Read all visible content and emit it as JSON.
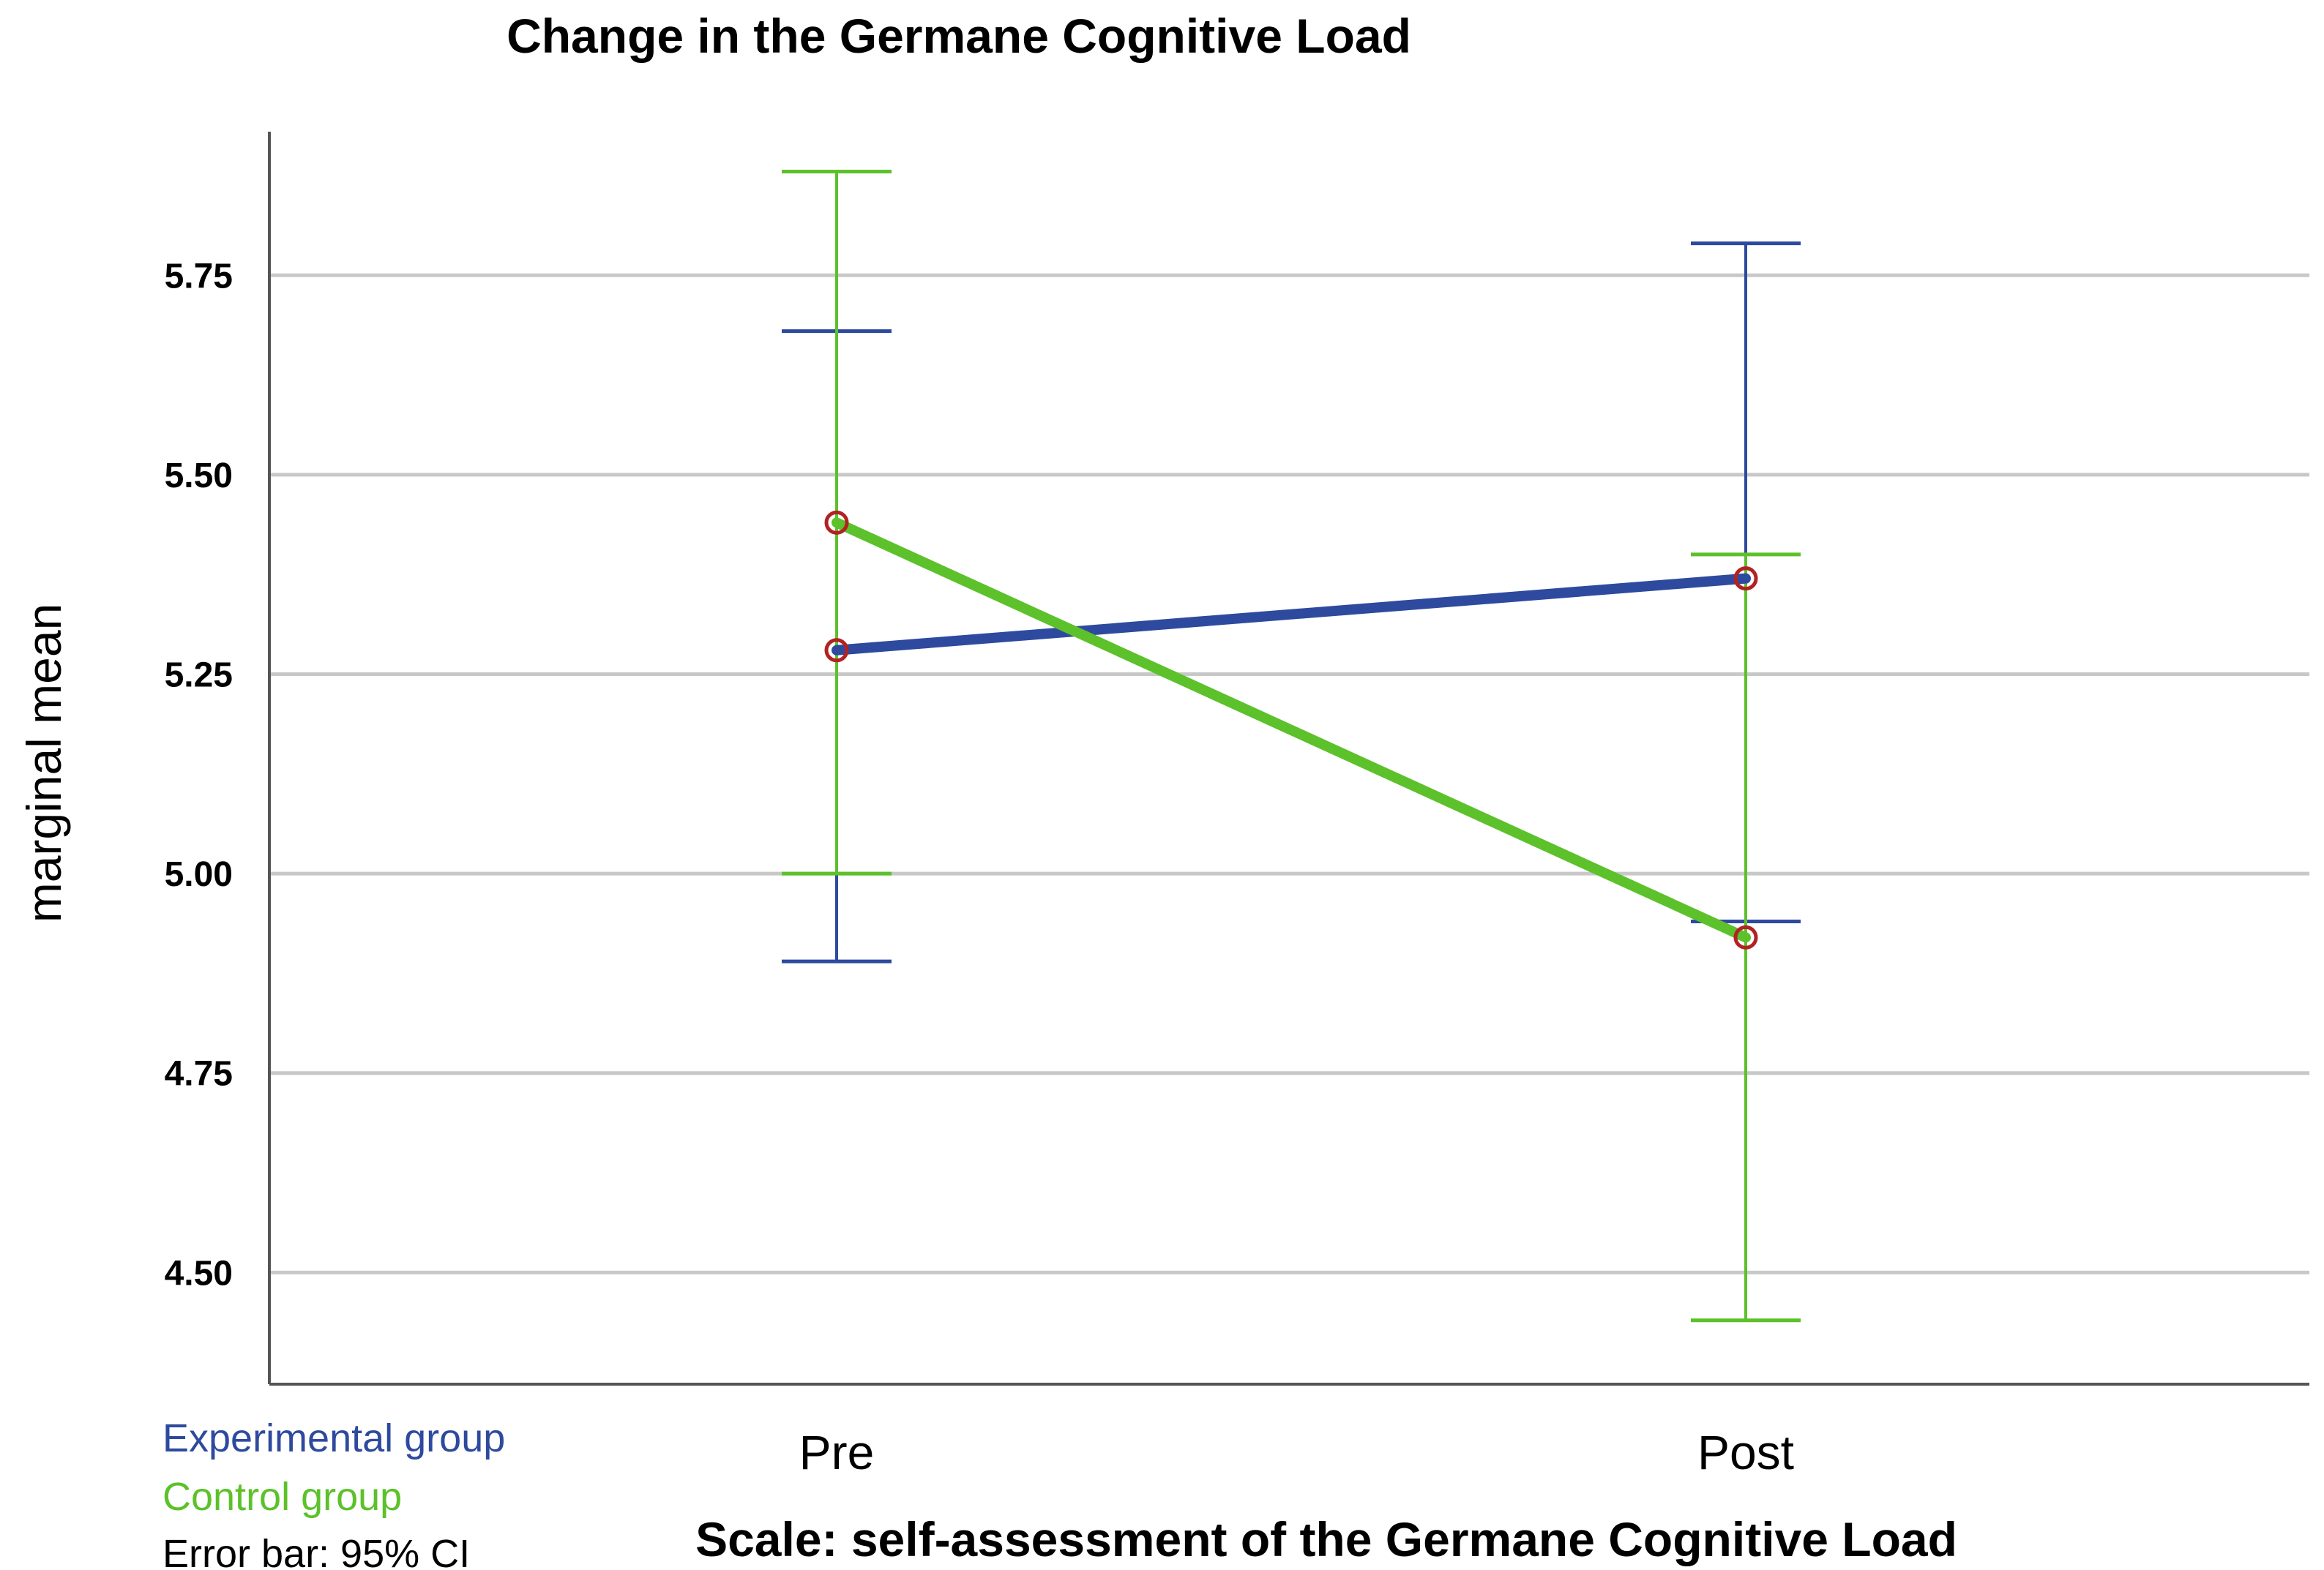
{
  "chart_data": {
    "type": "line",
    "title": "Change in the Germane Cognitive Load",
    "xlabel": "Scale: self-assessment of the Germane Cognitive Load",
    "ylabel": "marginal mean",
    "categories": [
      "Pre",
      "Post"
    ],
    "ylim": [
      4.36,
      5.93
    ],
    "yticks": [
      "4.50",
      "4.75",
      "5.00",
      "5.25",
      "5.50",
      "5.75"
    ],
    "grid": true,
    "series": [
      {
        "name": "Experimental group",
        "color": "#2e4a9e",
        "values": [
          5.28,
          5.37
        ],
        "ci_low": [
          4.89,
          4.94
        ],
        "ci_high": [
          5.68,
          5.79
        ]
      },
      {
        "name": "Control group",
        "color": "#5cc12a",
        "values": [
          5.44,
          4.92
        ],
        "ci_low": [
          5.0,
          4.44
        ],
        "ci_high": [
          5.88,
          5.4
        ]
      }
    ],
    "marker_color": "#b22222",
    "note": "Error bar: 95% CI"
  }
}
